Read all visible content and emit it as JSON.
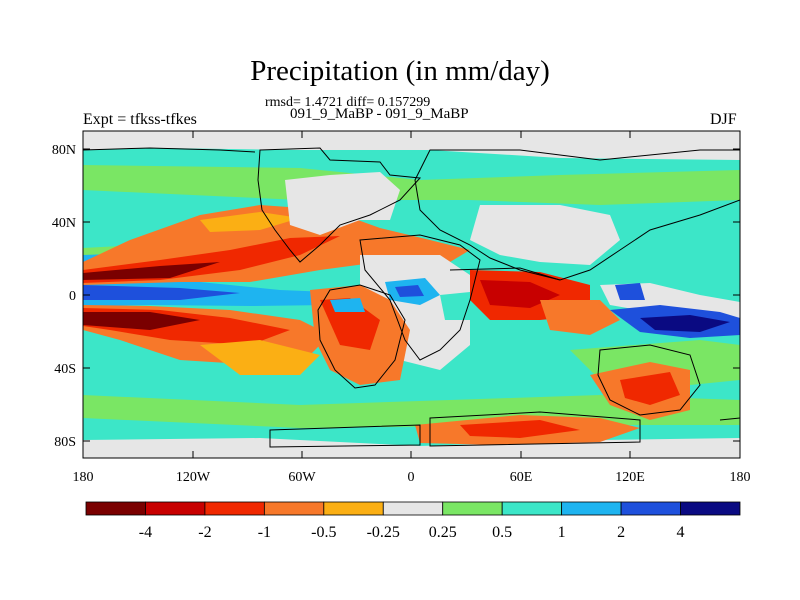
{
  "figure": {
    "title": "Precipitation (in mm/day)",
    "stats": "rmsd= 1.4721 diff= 0.157299",
    "left_header": "Expt = tfkss-tfkes",
    "center_header": "091_9_MaBP - 091_9_MaBP",
    "right_header": "DJF"
  },
  "map": {
    "type": "filled-contour-map",
    "lat_ticks": [
      "80N",
      "40N",
      "0",
      "40S",
      "80S"
    ],
    "lon_ticks": [
      "180",
      "120W",
      "60W",
      "0",
      "60E",
      "120E",
      "180"
    ]
  },
  "colorbar": {
    "labels": [
      "-4",
      "-2",
      "-1",
      "-0.5",
      "-0.25",
      "0.25",
      "0.5",
      "1",
      "2",
      "4"
    ],
    "colors": [
      "#7a0000",
      "#c80000",
      "#f02800",
      "#f7782a",
      "#fbaf14",
      "#e6e6e6",
      "#7ae664",
      "#3ce6c8",
      "#1eb4f0",
      "#1e50dc",
      "#0a0a82"
    ]
  },
  "palette": {
    "d4": "#7a0000",
    "d3": "#c80000",
    "d2": "#f02800",
    "d1": "#f7782a",
    "d0": "#fbaf14",
    "n": "#e6e6e6",
    "w0": "#7ae664",
    "w1": "#3ce6c8",
    "w2": "#1eb4f0",
    "w3": "#1e50dc",
    "w4": "#0a0a82"
  }
}
